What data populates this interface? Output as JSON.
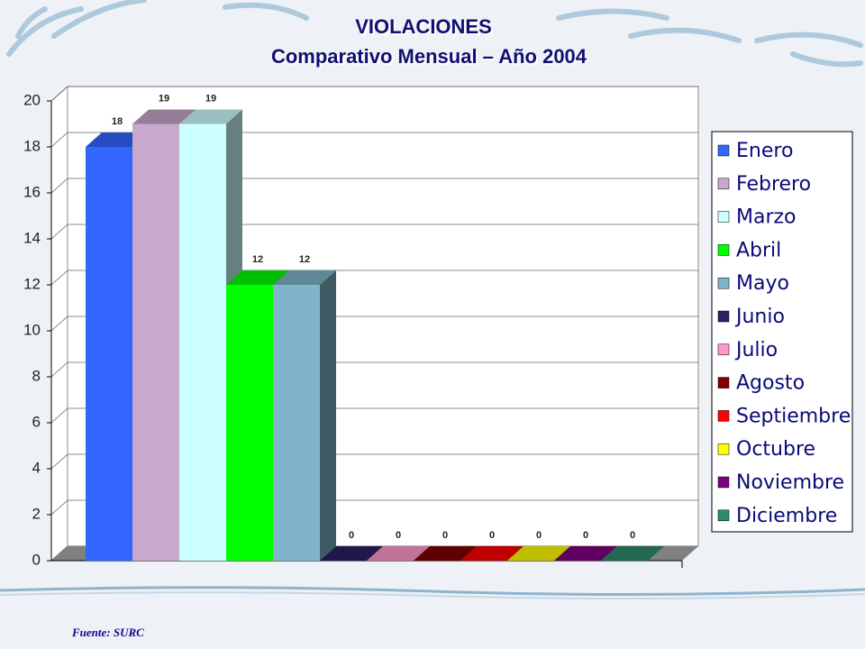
{
  "chart_data": {
    "type": "bar",
    "title": "VIOLACIONES",
    "subtitle": "Comparativo Mensual – Año 2004",
    "source": "Fuente: SURC",
    "series": [
      {
        "name": "Enero",
        "color": "#3366ff",
        "values": [
          18
        ]
      },
      {
        "name": "Febrero",
        "color": "#c8a8cc",
        "values": [
          19
        ]
      },
      {
        "name": "Marzo",
        "color": "#ccffff",
        "values": [
          19
        ]
      },
      {
        "name": "Abril",
        "color": "#00ff00",
        "values": [
          12
        ]
      },
      {
        "name": "Mayo",
        "color": "#80b4c8",
        "values": [
          12
        ]
      },
      {
        "name": "Junio",
        "color": "#2a1f66",
        "values": [
          0
        ]
      },
      {
        "name": "Julio",
        "color": "#ff99cc",
        "values": [
          0
        ]
      },
      {
        "name": "Agosto",
        "color": "#800000",
        "values": [
          0
        ]
      },
      {
        "name": "Septiembre",
        "color": "#ff0000",
        "values": [
          0
        ]
      },
      {
        "name": "Octubre",
        "color": "#ffff00",
        "values": [
          0
        ]
      },
      {
        "name": "Noviembre",
        "color": "#800080",
        "values": [
          0
        ]
      },
      {
        "name": "Diciembre",
        "color": "#2e8b6a",
        "values": [
          0
        ]
      }
    ],
    "ylim": [
      0,
      20
    ],
    "yticks": [
      0,
      2,
      4,
      6,
      8,
      10,
      12,
      14,
      16,
      18,
      20
    ],
    "grid": true
  }
}
